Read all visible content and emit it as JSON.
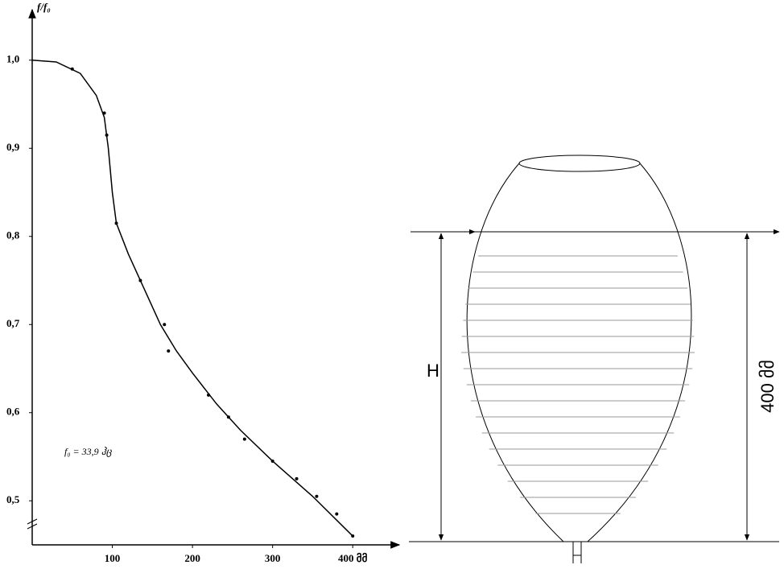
{
  "chart_data": {
    "type": "line",
    "y_label": "f/f₀",
    "annotation": "f₀ = 33,9 ჰც",
    "color": "#000000",
    "x": [
      0,
      30,
      60,
      80,
      90,
      95,
      100,
      105,
      120,
      140,
      160,
      180,
      200,
      230,
      260,
      300,
      350,
      400
    ],
    "values": [
      1.0,
      0.998,
      0.985,
      0.96,
      0.935,
      0.9,
      0.85,
      0.815,
      0.78,
      0.74,
      0.7,
      0.67,
      0.645,
      0.61,
      0.58,
      0.545,
      0.505,
      0.46
    ],
    "markers": {
      "x": [
        50,
        90,
        93,
        105,
        135,
        165,
        170,
        220,
        245,
        265,
        300,
        330,
        355,
        380,
        400
      ],
      "values": [
        0.99,
        0.94,
        0.915,
        0.815,
        0.75,
        0.7,
        0.67,
        0.62,
        0.595,
        0.57,
        0.545,
        0.525,
        0.505,
        0.485,
        0.46
      ]
    },
    "xlim": [
      0,
      450
    ],
    "ylim": [
      0.45,
      1.05
    ],
    "xticks": [
      100,
      200,
      300,
      {
        "value": 400,
        "label": "400 მმ"
      }
    ],
    "yticks": [
      {
        "value": 1.0,
        "label": "1,0"
      },
      {
        "value": 0.9,
        "label": "0,9"
      },
      {
        "value": 0.8,
        "label": "0,8"
      },
      {
        "value": 0.7,
        "label": "0,7"
      },
      {
        "value": 0.6,
        "label": "0,6"
      },
      {
        "value": 0.5,
        "label": "0,5"
      }
    ],
    "grid": false
  },
  "diagram": {
    "height_label": "H",
    "depth_label": "400 მმ"
  }
}
